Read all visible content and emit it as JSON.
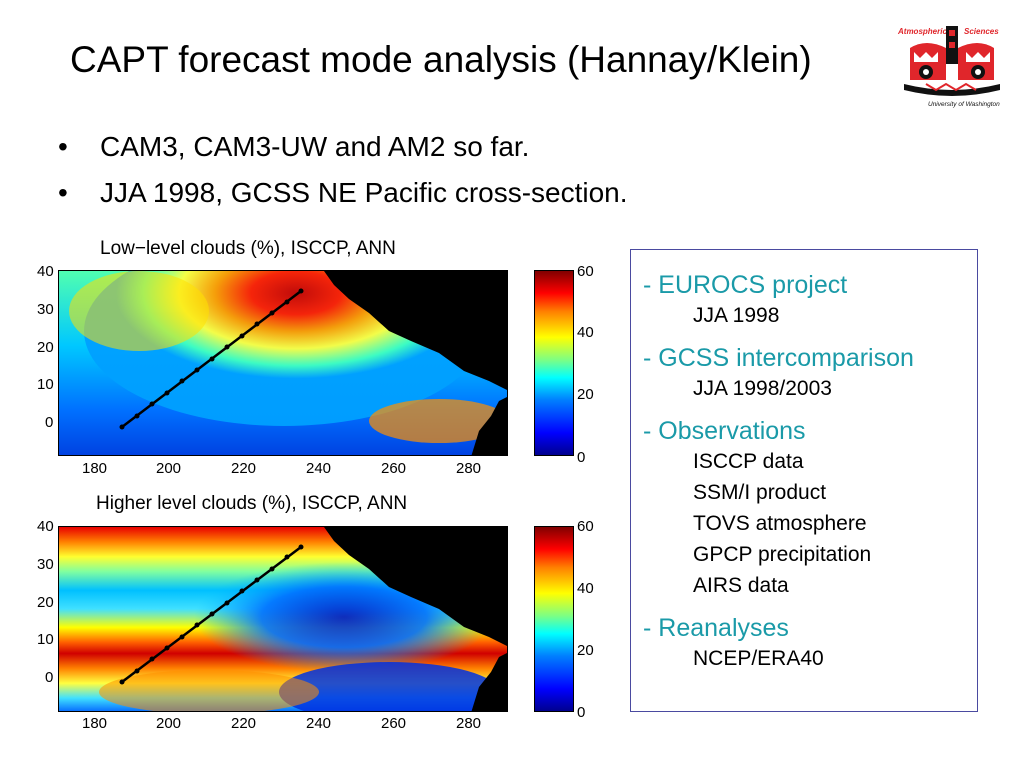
{
  "slide": {
    "title": "CAPT forecast mode analysis (Hannay/Klein)",
    "bullets": [
      "CAM3, CAM3-UW and AM2 so far.",
      "JJA 1998, GCSS NE Pacific cross-section."
    ],
    "bullet_glyph": "•"
  },
  "logo": {
    "text_left": "Atmospheric",
    "text_right": "Sciences",
    "caption": "University of Washington",
    "colors": {
      "red": "#e0262b",
      "black": "#111111"
    }
  },
  "maps": [
    {
      "title": "Low−level clouds (%), ISCCP, ANN",
      "y_ticks": [
        "40",
        "30",
        "20",
        "10",
        "0"
      ],
      "x_ticks": [
        "180",
        "200",
        "220",
        "240",
        "260",
        "280"
      ],
      "colorbar_ticks": [
        "60",
        "40",
        "20",
        "0"
      ]
    },
    {
      "title": "Higher level clouds (%), ISCCP, ANN",
      "y_ticks": [
        "40",
        "30",
        "20",
        "10",
        "0"
      ],
      "x_ticks": [
        "180",
        "200",
        "220",
        "240",
        "260",
        "280"
      ],
      "colorbar_ticks": [
        "60",
        "40",
        "20",
        "0"
      ]
    }
  ],
  "info_box": {
    "sections": [
      {
        "heading": "- EUROCS project",
        "items": [
          "JJA 1998"
        ]
      },
      {
        "heading": "- GCSS intercomparison",
        "items": [
          "JJA 1998/2003"
        ]
      },
      {
        "heading": "- Observations",
        "items": [
          "ISCCP data",
          "SSM/I product",
          "TOVS atmosphere",
          "GPCP precipitation",
          "AIRS data"
        ]
      },
      {
        "heading": "- Reanalyses",
        "items": [
          "NCEP/ERA40"
        ]
      }
    ],
    "heading_color": "#1a9aa8",
    "border_color": "#4a4aa0"
  }
}
